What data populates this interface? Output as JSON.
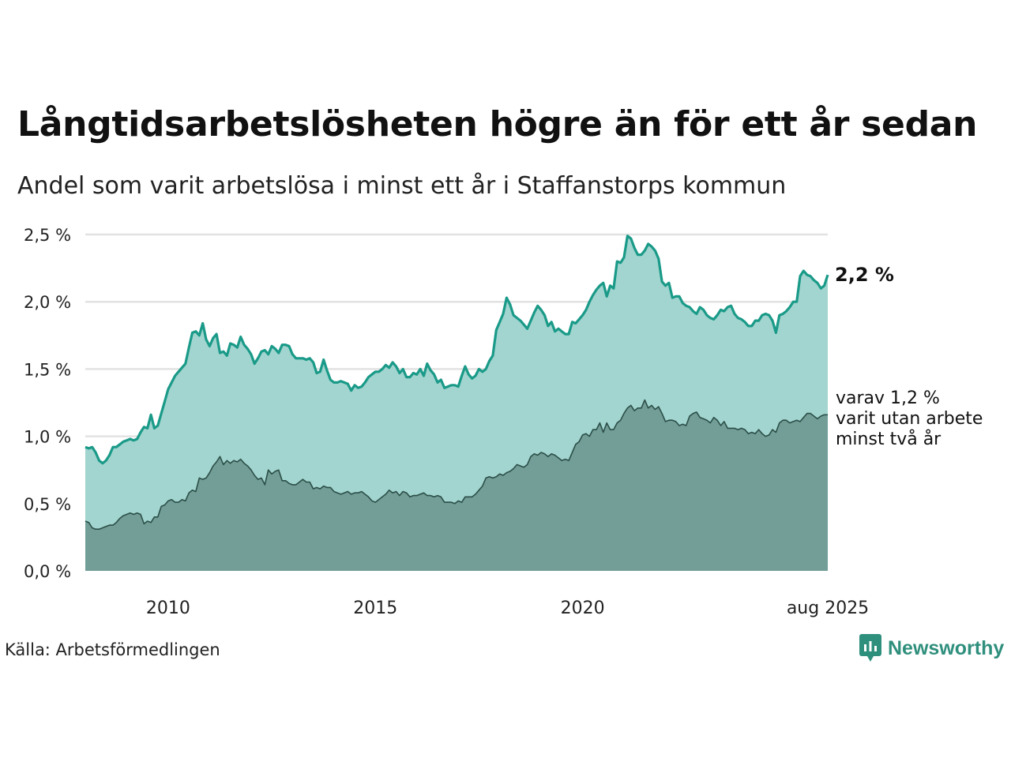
{
  "title": "Långtidsarbetslösheten högre än för ett år sedan",
  "subtitle": "Andel som varit arbetslösa i minst ett år i Staffanstorps kommun",
  "source": "Källa: Arbetsförmedlingen",
  "brand": "Newsworthy",
  "colors": {
    "line_total": "#1a9a88",
    "area_total": "#a2d5cf",
    "line_long": "#2c4e48",
    "area_long": "#729e97",
    "grid": "#e2e2e2",
    "brand": "#2f8f7d"
  },
  "chart_data": {
    "type": "area",
    "ylim": [
      0,
      2.5
    ],
    "yticks": [
      "0,0 %",
      "0,5 %",
      "1,0 %",
      "1,5 %",
      "2,0 %",
      "2,5 %"
    ],
    "x_range": [
      "2008-01",
      "2025-08"
    ],
    "xticks": [
      "2010",
      "2015",
      "2020",
      "aug 2025"
    ],
    "end_label": "2,2 %",
    "sub_label": [
      "varav 1,2 %",
      "varit utan arbete",
      "minst två år"
    ],
    "series": [
      {
        "values": [
          0.92,
          0.91,
          0.92,
          0.88,
          0.82,
          0.8,
          0.82,
          0.86,
          0.92,
          0.92,
          0.94,
          0.96,
          0.97,
          0.98,
          0.97,
          0.98,
          1.03,
          1.07,
          1.06,
          1.16,
          1.06,
          1.08,
          1.17,
          1.26,
          1.35,
          1.4,
          1.45,
          1.48,
          1.51,
          1.54,
          1.66,
          1.77,
          1.78,
          1.75,
          1.84,
          1.72,
          1.67,
          1.73,
          1.76,
          1.62,
          1.63,
          1.6,
          1.69,
          1.68,
          1.66,
          1.74,
          1.68,
          1.65,
          1.61,
          1.54,
          1.58,
          1.63,
          1.64,
          1.61,
          1.67,
          1.65,
          1.62,
          1.68,
          1.68,
          1.67,
          1.61,
          1.58,
          1.58,
          1.58,
          1.57,
          1.58,
          1.55,
          1.47,
          1.48,
          1.57,
          1.49,
          1.42,
          1.4,
          1.4,
          1.41,
          1.4,
          1.39,
          1.34,
          1.38,
          1.36,
          1.37,
          1.4,
          1.44,
          1.46,
          1.48,
          1.48,
          1.5,
          1.53,
          1.51,
          1.55,
          1.52,
          1.47,
          1.5,
          1.44,
          1.44,
          1.47,
          1.46,
          1.5,
          1.45,
          1.54,
          1.49,
          1.46,
          1.4,
          1.42,
          1.36,
          1.37,
          1.38,
          1.38,
          1.37,
          1.45,
          1.52,
          1.46,
          1.43,
          1.45,
          1.5,
          1.48,
          1.5,
          1.56,
          1.6,
          1.79,
          1.85,
          1.91,
          2.03,
          1.98,
          1.9,
          1.88,
          1.86,
          1.83,
          1.8,
          1.86,
          1.92,
          1.97,
          1.94,
          1.9,
          1.82,
          1.85,
          1.78,
          1.8,
          1.78,
          1.76,
          1.76,
          1.85,
          1.84,
          1.87,
          1.9,
          1.94,
          2.0,
          2.05,
          2.09,
          2.12,
          2.14,
          2.04,
          2.12,
          2.1,
          2.3,
          2.29,
          2.33,
          2.49,
          2.47,
          2.4,
          2.35,
          2.35,
          2.38,
          2.43,
          2.41,
          2.38,
          2.32,
          2.15,
          2.12,
          2.14,
          2.03,
          2.04,
          2.04,
          1.99,
          1.97,
          1.96,
          1.93,
          1.91,
          1.96,
          1.94,
          1.9,
          1.88,
          1.87,
          1.9,
          1.94,
          1.93,
          1.96,
          1.97,
          1.91,
          1.88,
          1.87,
          1.85,
          1.82,
          1.82,
          1.86,
          1.86,
          1.9,
          1.91,
          1.9,
          1.86,
          1.77,
          1.9,
          1.91,
          1.93,
          1.96,
          2.0,
          2.0,
          2.19,
          2.23,
          2.2,
          2.19,
          2.16,
          2.14,
          2.1,
          2.12,
          2.2
        ]
      },
      {
        "values": [
          0.37,
          0.36,
          0.32,
          0.31,
          0.31,
          0.32,
          0.33,
          0.34,
          0.34,
          0.36,
          0.39,
          0.41,
          0.42,
          0.43,
          0.42,
          0.43,
          0.42,
          0.35,
          0.37,
          0.36,
          0.4,
          0.4,
          0.48,
          0.49,
          0.52,
          0.53,
          0.51,
          0.51,
          0.53,
          0.52,
          0.58,
          0.6,
          0.59,
          0.69,
          0.68,
          0.69,
          0.73,
          0.78,
          0.81,
          0.85,
          0.79,
          0.82,
          0.8,
          0.82,
          0.81,
          0.83,
          0.8,
          0.78,
          0.75,
          0.71,
          0.68,
          0.69,
          0.64,
          0.75,
          0.72,
          0.74,
          0.75,
          0.67,
          0.67,
          0.65,
          0.64,
          0.64,
          0.66,
          0.68,
          0.66,
          0.66,
          0.61,
          0.62,
          0.61,
          0.63,
          0.62,
          0.62,
          0.59,
          0.58,
          0.57,
          0.58,
          0.59,
          0.57,
          0.58,
          0.58,
          0.59,
          0.57,
          0.55,
          0.52,
          0.51,
          0.53,
          0.55,
          0.57,
          0.6,
          0.58,
          0.59,
          0.56,
          0.59,
          0.58,
          0.55,
          0.56,
          0.56,
          0.57,
          0.58,
          0.56,
          0.56,
          0.55,
          0.56,
          0.55,
          0.51,
          0.51,
          0.51,
          0.5,
          0.52,
          0.51,
          0.55,
          0.55,
          0.55,
          0.57,
          0.6,
          0.63,
          0.69,
          0.7,
          0.69,
          0.7,
          0.72,
          0.71,
          0.73,
          0.74,
          0.76,
          0.79,
          0.78,
          0.77,
          0.79,
          0.85,
          0.87,
          0.86,
          0.88,
          0.87,
          0.85,
          0.87,
          0.86,
          0.84,
          0.82,
          0.83,
          0.82,
          0.88,
          0.94,
          0.96,
          1.01,
          1.02,
          1.0,
          1.05,
          1.05,
          1.1,
          1.03,
          1.1,
          1.05,
          1.05,
          1.1,
          1.12,
          1.17,
          1.21,
          1.23,
          1.19,
          1.21,
          1.21,
          1.27,
          1.21,
          1.23,
          1.2,
          1.22,
          1.17,
          1.11,
          1.12,
          1.12,
          1.11,
          1.08,
          1.09,
          1.08,
          1.15,
          1.17,
          1.18,
          1.14,
          1.13,
          1.12,
          1.1,
          1.14,
          1.12,
          1.08,
          1.11,
          1.06,
          1.06,
          1.06,
          1.05,
          1.06,
          1.05,
          1.02,
          1.03,
          1.02,
          1.05,
          1.02,
          1.0,
          1.01,
          1.05,
          1.03,
          1.1,
          1.12,
          1.12,
          1.1,
          1.11,
          1.12,
          1.11,
          1.14,
          1.17,
          1.17,
          1.15,
          1.13,
          1.15,
          1.16,
          1.16
        ]
      }
    ]
  }
}
